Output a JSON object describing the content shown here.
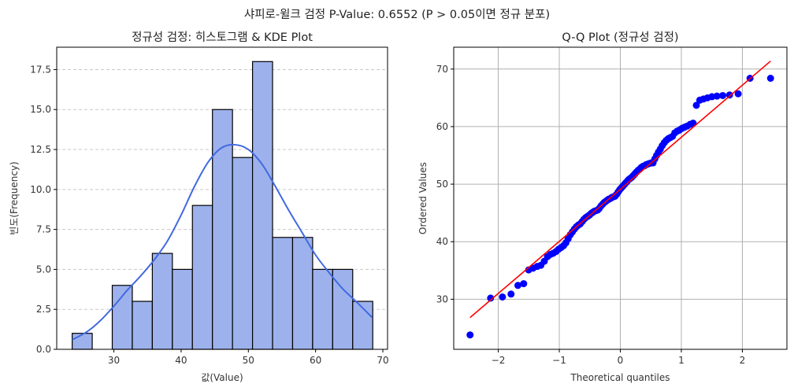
{
  "suptitle": "샤피로-윌크 검정 P-Value: 0.6552 (P > 0.05이면 정규 분포)",
  "chart_data": [
    {
      "type": "bar",
      "subtype": "histogram_with_kde",
      "title": "정규성 검정: 히스토그램 & KDE Plot",
      "xlabel": "값(Value)",
      "ylabel": "빈도(Frequency)",
      "xlim": [
        21.5,
        70.7
      ],
      "ylim": [
        0,
        18.9
      ],
      "xticks": [
        30,
        40,
        50,
        60,
        70
      ],
      "yticks": [
        0.0,
        2.5,
        5.0,
        7.5,
        10.0,
        12.5,
        15.0,
        17.5
      ],
      "ytick_labels": [
        "0.0",
        "2.5",
        "5.0",
        "7.5",
        "10.0",
        "12.5",
        "15.0",
        "17.5"
      ],
      "grid": "y dashed",
      "bin_start": 23.8,
      "bin_width": 2.98,
      "values": [
        1,
        0,
        4,
        3,
        6,
        5,
        9,
        15,
        12,
        18,
        7,
        7,
        5,
        5,
        3
      ],
      "bar_color": "#9db2ec",
      "kde_color": "#4169e1",
      "kde": {
        "x": [
          23.8,
          26,
          28,
          30,
          32,
          34,
          36,
          38,
          40,
          42,
          44,
          46,
          48,
          50,
          52,
          54,
          56,
          58,
          60,
          62,
          64,
          66,
          68.4
        ],
        "y": [
          0.6,
          1.1,
          1.8,
          2.7,
          3.7,
          4.6,
          5.6,
          6.8,
          8.4,
          10.2,
          11.7,
          12.6,
          12.8,
          12.5,
          11.6,
          10.2,
          8.7,
          7.3,
          5.9,
          4.8,
          3.8,
          3.0,
          2.0
        ]
      }
    },
    {
      "type": "scatter",
      "subtype": "qq_plot",
      "title": "Q-Q Plot (정규성 검정)",
      "xlabel": "Theoretical quantiles",
      "ylabel": "Ordered Values",
      "xlim": [
        -2.73,
        2.73
      ],
      "ylim": [
        21.3,
        73.8
      ],
      "xticks": [
        -2,
        -1,
        0,
        1,
        2
      ],
      "xtick_labels": [
        "−2",
        "−1",
        "0",
        "1",
        "2"
      ],
      "yticks": [
        30,
        40,
        50,
        60,
        70
      ],
      "grid": "both solid",
      "point_color": "#0000ff",
      "line_color": "#ff0000",
      "fit_line": {
        "slope": 9.05,
        "intercept": 49.1
      },
      "ordered_values": [
        23.8,
        30.2,
        30.4,
        30.9,
        32.4,
        32.7,
        35.1,
        35.4,
        35.7,
        35.9,
        36.6,
        37.4,
        37.8,
        38.0,
        38.3,
        38.7,
        39.0,
        39.3,
        39.8,
        40.5,
        41.2,
        41.7,
        42.2,
        42.6,
        42.9,
        43.1,
        43.5,
        43.9,
        44.2,
        44.4,
        44.6,
        44.9,
        45.1,
        45.3,
        45.4,
        45.5,
        45.8,
        46.2,
        46.5,
        46.8,
        47.0,
        47.2,
        47.4,
        47.5,
        47.7,
        47.8,
        47.9,
        48.2,
        48.6,
        49.0,
        49.3,
        49.6,
        49.9,
        50.2,
        50.5,
        50.8,
        51.0,
        51.2,
        51.5,
        51.8,
        52.1,
        52.4,
        52.6,
        52.9,
        53.1,
        53.2,
        53.4,
        53.5,
        53.6,
        53.7,
        53.7,
        54.4,
        55.0,
        55.6,
        56.1,
        56.7,
        57.2,
        57.6,
        57.9,
        58.1,
        58.3,
        58.9,
        59.2,
        59.4,
        59.7,
        59.9,
        60.1,
        60.4,
        60.6,
        63.7,
        64.6,
        64.8,
        65.0,
        65.2,
        65.3,
        65.4,
        65.5,
        65.7,
        68.4,
        68.4
      ]
    }
  ]
}
